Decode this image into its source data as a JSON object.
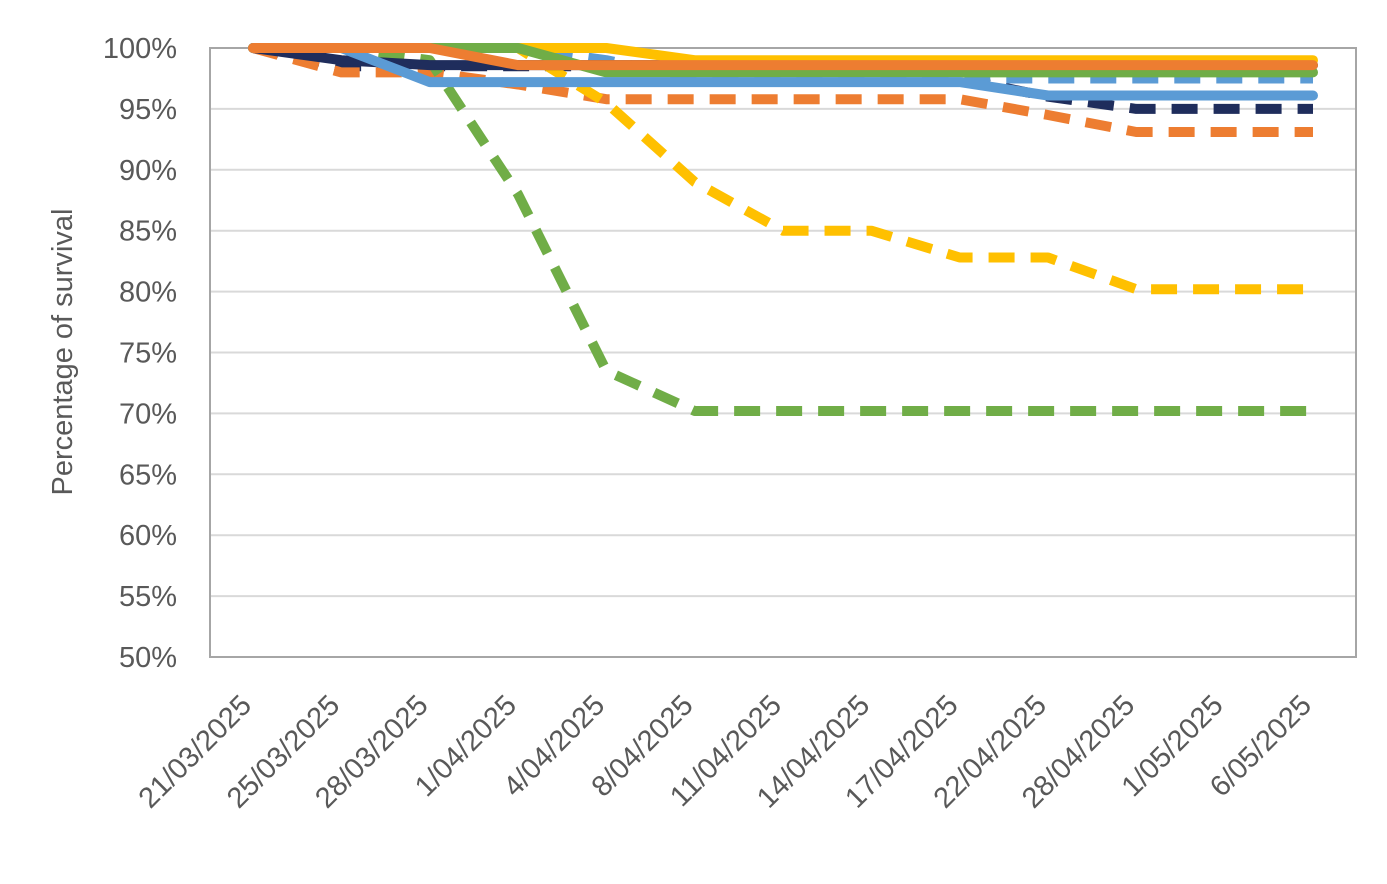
{
  "chart_data": {
    "type": "line",
    "title": "",
    "xlabel": "",
    "ylabel": "Percentage of survival",
    "ylim": [
      50,
      100
    ],
    "yticks": [
      50,
      55,
      60,
      65,
      70,
      75,
      80,
      85,
      90,
      95,
      100
    ],
    "ytick_labels": [
      "50%",
      "55%",
      "60%",
      "65%",
      "70%",
      "75%",
      "80%",
      "85%",
      "90%",
      "95%",
      "100%"
    ],
    "grid": "horizontal",
    "legend": "none",
    "categories": [
      "21/03/2025",
      "25/03/2025",
      "28/03/2025",
      "1/04/2025",
      "4/04/2025",
      "8/04/2025",
      "11/04/2025",
      "14/04/2025",
      "17/04/2025",
      "22/04/2025",
      "28/04/2025",
      "1/05/2025",
      "6/05/2025"
    ],
    "series": [
      {
        "color": "#1F2D5C",
        "style": "dashed",
        "values": [
          100,
          98.5,
          98.5,
          98.5,
          98.5,
          98.5,
          98.5,
          98.5,
          97.5,
          96,
          95,
          95,
          95
        ]
      },
      {
        "color": "#ED7D31",
        "style": "dashed",
        "values": [
          100,
          98,
          98,
          97,
          95.8,
          95.8,
          95.8,
          95.8,
          95.8,
          94.5,
          93.1,
          93.1,
          93.1
        ]
      },
      {
        "color": "#FFC000",
        "style": "dashed",
        "values": [
          100,
          100,
          100,
          100,
          95.5,
          89,
          85,
          85,
          82.8,
          82.8,
          80.2,
          80.2,
          80.2
        ]
      },
      {
        "color": "#70AD47",
        "style": "dashed",
        "values": [
          100,
          100,
          99,
          88,
          73.5,
          70.2,
          70.2,
          70.2,
          70.2,
          70.2,
          70.2,
          70.2,
          70.2
        ]
      },
      {
        "color": "#5B9BD5",
        "style": "dashed",
        "values": [
          100,
          100,
          100,
          100,
          99,
          97.5,
          97.5,
          97.5,
          97.5,
          97.5,
          97.5,
          97.5,
          97.5
        ]
      },
      {
        "color": "#1F2D5C",
        "style": "solid",
        "values": [
          100,
          99,
          98.6,
          98.6,
          98.6,
          98.6,
          98.6,
          98.6,
          98.6,
          98.6,
          98.6,
          98.6,
          98.6
        ]
      },
      {
        "color": "#FFC000",
        "style": "solid",
        "values": [
          100,
          100,
          100,
          100,
          100,
          99,
          99,
          99,
          99,
          99,
          99,
          99,
          99
        ]
      },
      {
        "color": "#70AD47",
        "style": "solid",
        "values": [
          100,
          100,
          100,
          100,
          98,
          98,
          98,
          98,
          98,
          98,
          98,
          98,
          98
        ]
      },
      {
        "color": "#5B9BD5",
        "style": "solid",
        "values": [
          100,
          100,
          97.2,
          97.2,
          97.2,
          97.2,
          97.2,
          97.2,
          97.2,
          96.1,
          96.1,
          96.1,
          96.1
        ]
      },
      {
        "color": "#ED7D31",
        "style": "solid",
        "values": [
          100,
          100,
          100,
          98.6,
          98.6,
          98.6,
          98.6,
          98.6,
          98.6,
          98.6,
          98.6,
          98.6,
          98.6
        ]
      }
    ]
  }
}
